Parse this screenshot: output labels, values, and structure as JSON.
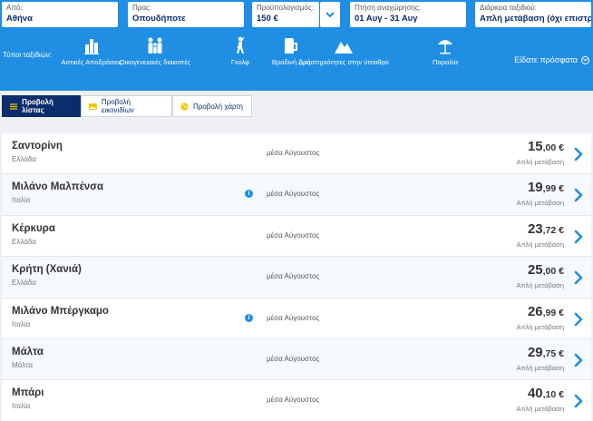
{
  "search": {
    "from": {
      "label": "Από:",
      "value": "Αθήνα"
    },
    "to": {
      "label": "Προς:",
      "value": "Οπουδήποτε"
    },
    "budget": {
      "label": "Προϋπολογισμός:",
      "value": "150 €"
    },
    "departure": {
      "label": "Πτήση αναχώρησης:",
      "value": "01 Αυγ - 31 Αυγ"
    },
    "duration": {
      "label": "Διάρκεια ταξιδιού:",
      "value": "Απλή μετάβαση (όχι επιστρο"
    }
  },
  "trip_types": {
    "label": "Τύποι ταξιδιών:",
    "items": [
      {
        "label": "Αστικές Αποδράσεις",
        "icon": "city-icon"
      },
      {
        "label": "Οικογενειακές διακοπές",
        "icon": "family-icon"
      },
      {
        "label": "Γκολφ",
        "icon": "golf-icon"
      },
      {
        "label": "Βραδινή ζωή",
        "icon": "beer-icon"
      },
      {
        "label": "Δραστηριότητες στην ύπαιθρο",
        "icon": "mountain-icon"
      },
      {
        "label": "Παραλία",
        "icon": "umbrella-icon"
      }
    ],
    "recent_label": "Είδατε πρόσφατα"
  },
  "views": {
    "list": "Προβολή λίστας",
    "images": "Προβολή εικονιδίων",
    "map": "Προβολή χάρτη"
  },
  "destinations": [
    {
      "name": "Σαντορίνη",
      "country": "Ελλάδα",
      "when": "μέσα Αύγουστος",
      "price_int": "15",
      "price_dec": ",00 €",
      "trip": "Απλή μετάβαση",
      "info": false
    },
    {
      "name": "Μιλάνο Μαλπένσα",
      "country": "Ιταλία",
      "when": "μέσα Αύγουστος",
      "price_int": "19",
      "price_dec": ",99 €",
      "trip": "Απλή μετάβαση",
      "info": true
    },
    {
      "name": "Κέρκυρα",
      "country": "Ελλάδα",
      "when": "μέσα Αύγουστος",
      "price_int": "23",
      "price_dec": ",72 €",
      "trip": "Απλή μετάβαση",
      "info": false
    },
    {
      "name": "Κρήτη (Χανιά)",
      "country": "Ελλάδα",
      "when": "μέσα Αύγουστος",
      "price_int": "25",
      "price_dec": ",00 €",
      "trip": "Απλή μετάβαση",
      "info": false
    },
    {
      "name": "Μιλάνο Μπέργκαμο",
      "country": "Ιταλία",
      "when": "μέσα Αύγουστος",
      "price_int": "26",
      "price_dec": ",99 €",
      "trip": "Απλή μετάβαση",
      "info": true
    },
    {
      "name": "Μάλτα",
      "country": "Μάλτα",
      "when": "μέσα Αύγουστος",
      "price_int": "29",
      "price_dec": ",75 €",
      "trip": "Απλή μετάβαση",
      "info": false
    },
    {
      "name": "Μπάρι",
      "country": "Ιταλία",
      "when": "μέσα Αύγουστος",
      "price_int": "40",
      "price_dec": ",10 €",
      "trip": "Απλή μετάβαση",
      "info": false
    }
  ],
  "colors": {
    "brand_blue": "#1f8ee3",
    "navy": "#0b2d6b"
  }
}
